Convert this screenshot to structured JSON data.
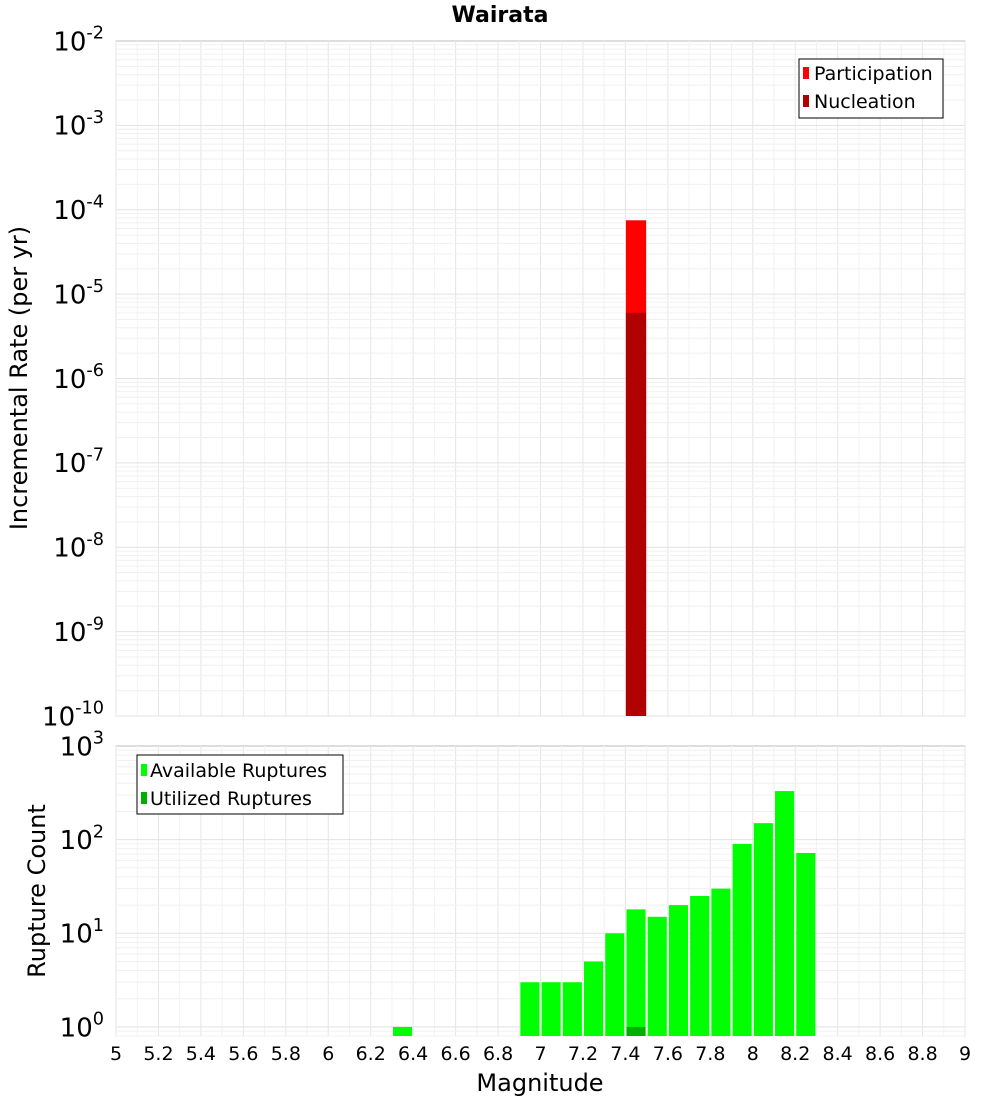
{
  "chart_data": [
    {
      "type": "bar",
      "title": "Wairata",
      "ylabel": "Incremental Rate (per yr)",
      "yscale": "log",
      "ylim": [
        1e-10,
        0.01
      ],
      "xlim": [
        5,
        9
      ],
      "grid": true,
      "legend_position": "top-right",
      "y_ticks": [
        {
          "base": "10",
          "exp": "-10"
        },
        {
          "base": "10",
          "exp": "-9"
        },
        {
          "base": "10",
          "exp": "-8"
        },
        {
          "base": "10",
          "exp": "-7"
        },
        {
          "base": "10",
          "exp": "-6"
        },
        {
          "base": "10",
          "exp": "-5"
        },
        {
          "base": "10",
          "exp": "-4"
        },
        {
          "base": "10",
          "exp": "-3"
        },
        {
          "base": "10",
          "exp": "-2"
        }
      ],
      "series": [
        {
          "name": "Participation",
          "color": "#ff0000",
          "x": [
            7.45
          ],
          "values": [
            7.5e-05
          ]
        },
        {
          "name": "Nucleation",
          "color": "#b00000",
          "x": [
            7.45
          ],
          "values": [
            6e-06
          ]
        }
      ],
      "bin_width": 0.1
    },
    {
      "type": "bar",
      "xlabel": "Magnitude",
      "ylabel": "Rupture Count",
      "yscale": "log",
      "ylim": [
        0.8,
        1000
      ],
      "xlim": [
        5,
        9
      ],
      "grid": true,
      "legend_position": "top-left",
      "y_ticks": [
        {
          "base": "10",
          "exp": "0"
        },
        {
          "base": "10",
          "exp": "1"
        },
        {
          "base": "10",
          "exp": "2"
        },
        {
          "base": "10",
          "exp": "3"
        }
      ],
      "x_ticks": [
        "5",
        "5.2",
        "5.4",
        "5.6",
        "5.8",
        "6",
        "6.2",
        "6.4",
        "6.6",
        "6.8",
        "7",
        "7.2",
        "7.4",
        "7.6",
        "7.8",
        "8",
        "8.2",
        "8.4",
        "8.6",
        "8.8",
        "9"
      ],
      "series": [
        {
          "name": "Available Ruptures",
          "color": "#00ff00",
          "x": [
            6.35,
            6.95,
            7.05,
            7.15,
            7.25,
            7.35,
            7.45,
            7.55,
            7.65,
            7.75,
            7.85,
            7.95,
            8.05,
            8.15,
            8.25
          ],
          "values": [
            1,
            3,
            3,
            3,
            5,
            10,
            18,
            15,
            20,
            25,
            30,
            90,
            150,
            330,
            72
          ]
        },
        {
          "name": "Utilized Ruptures",
          "color": "#00b000",
          "x": [
            7.45
          ],
          "values": [
            1
          ]
        }
      ],
      "bin_width": 0.1
    }
  ]
}
